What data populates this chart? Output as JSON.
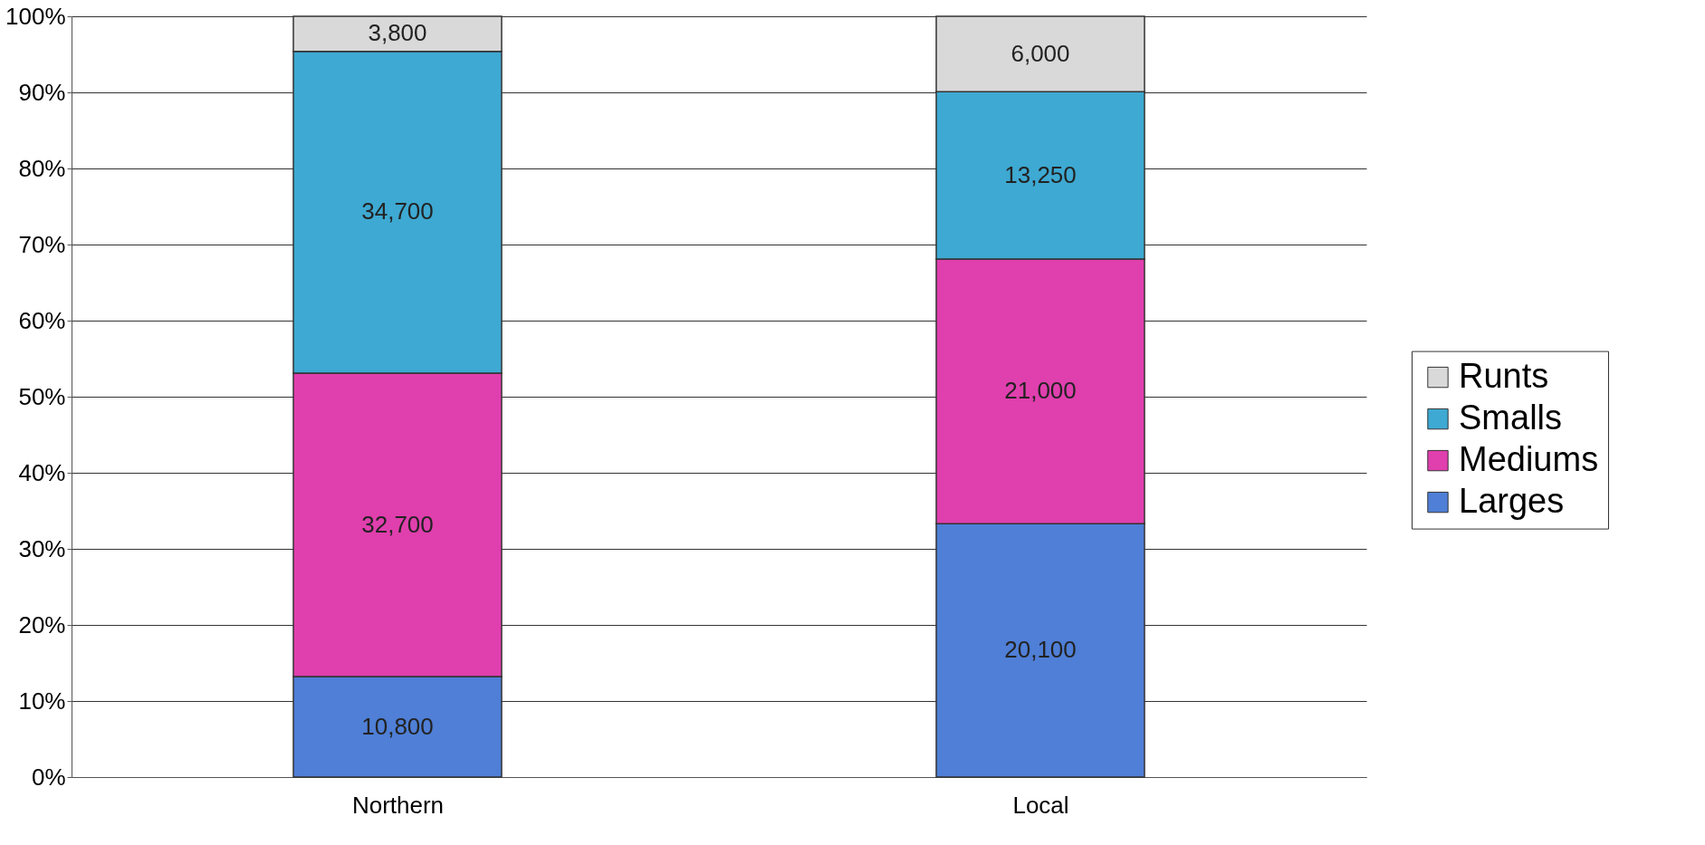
{
  "chart_data": {
    "type": "bar",
    "stacked": true,
    "categories": [
      "Northern",
      "Local"
    ],
    "series": [
      {
        "name": "Larges",
        "color": "#4f7fd6",
        "values": [
          13.2,
          33.3
        ]
      },
      {
        "name": "Mediums",
        "color": "#e03fae",
        "values": [
          39.9,
          34.8
        ]
      },
      {
        "name": "Smalls",
        "color": "#3ea9d2",
        "values": [
          42.3,
          22.0
        ]
      },
      {
        "name": "Runts",
        "color": "#d9d9d9",
        "values": [
          4.6,
          9.9
        ]
      }
    ],
    "annotations": [
      "10,800",
      "32,700",
      "34,700",
      "3,800",
      "20,100",
      "21,000",
      "13,250",
      "6,000"
    ],
    "ylim": [
      0,
      100
    ],
    "yticks": [
      {
        "value": 0,
        "label": "0%"
      },
      {
        "value": 10,
        "label": "10%"
      },
      {
        "value": 20,
        "label": "20%"
      },
      {
        "value": 30,
        "label": "30%"
      },
      {
        "value": 40,
        "label": "40%"
      },
      {
        "value": 50,
        "label": "50%"
      },
      {
        "value": 60,
        "label": "60%"
      },
      {
        "value": 70,
        "label": "70%"
      },
      {
        "value": 80,
        "label": "80%"
      },
      {
        "value": 90,
        "label": "90%"
      },
      {
        "value": 100,
        "label": "100%"
      }
    ],
    "grid": "y",
    "legend": "right"
  }
}
